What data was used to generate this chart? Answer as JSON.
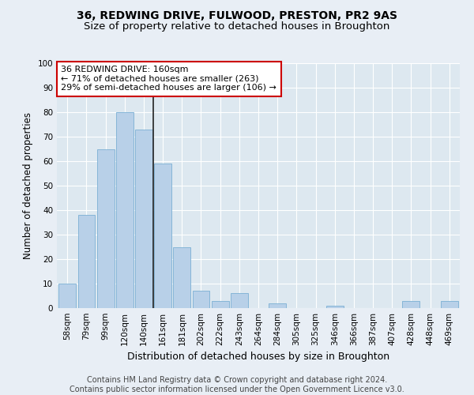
{
  "title": "36, REDWING DRIVE, FULWOOD, PRESTON, PR2 9AS",
  "subtitle": "Size of property relative to detached houses in Broughton",
  "xlabel": "Distribution of detached houses by size in Broughton",
  "ylabel": "Number of detached properties",
  "categories": [
    "58sqm",
    "79sqm",
    "99sqm",
    "120sqm",
    "140sqm",
    "161sqm",
    "181sqm",
    "202sqm",
    "222sqm",
    "243sqm",
    "264sqm",
    "284sqm",
    "305sqm",
    "325sqm",
    "346sqm",
    "366sqm",
    "387sqm",
    "407sqm",
    "428sqm",
    "448sqm",
    "469sqm"
  ],
  "values": [
    10,
    38,
    65,
    80,
    73,
    59,
    25,
    7,
    3,
    6,
    0,
    2,
    0,
    0,
    1,
    0,
    0,
    0,
    3,
    0,
    3
  ],
  "bar_color": "#b8d0e8",
  "bar_edge_color": "#7aafd4",
  "vline_index": 5,
  "ylim": [
    0,
    100
  ],
  "yticks": [
    0,
    10,
    20,
    30,
    40,
    50,
    60,
    70,
    80,
    90,
    100
  ],
  "annotation_box_text": "36 REDWING DRIVE: 160sqm\n← 71% of detached houses are smaller (263)\n29% of semi-detached houses are larger (106) →",
  "annotation_box_color": "#ffffff",
  "annotation_box_edge_color": "#cc0000",
  "footer_text": "Contains HM Land Registry data © Crown copyright and database right 2024.\nContains public sector information licensed under the Open Government Licence v3.0.",
  "background_color": "#e8eef5",
  "plot_background_color": "#dde8f0",
  "grid_color": "#ffffff",
  "title_fontsize": 10,
  "subtitle_fontsize": 9.5,
  "ylabel_fontsize": 8.5,
  "xlabel_fontsize": 9,
  "tick_fontsize": 7.5,
  "footer_fontsize": 7,
  "annotation_fontsize": 8
}
